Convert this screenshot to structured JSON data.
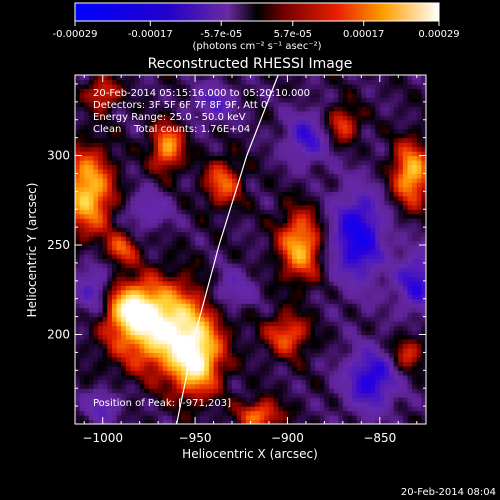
{
  "colorbar": {
    "ticks": [
      "-0.00029",
      "-0.00017",
      "-5.7e-05",
      "5.7e-05",
      "0.00017",
      "0.00029"
    ],
    "tick_values": [
      -0.00029,
      -0.00017,
      -5.7e-05,
      5.7e-05,
      0.00017,
      0.00029
    ],
    "range": [
      -0.00029,
      0.00029
    ],
    "unit_label": "(photons cm⁻² s⁻¹ asec⁻²)"
  },
  "chart_data": {
    "type": "heatmap",
    "title": "Reconstructed RHESSI Image",
    "xlabel": "Heliocentric X (arcsec)",
    "ylabel": "Heliocentric Y (arcsec)",
    "xlim": [
      -1015,
      -825
    ],
    "ylim": [
      150,
      345
    ],
    "xticks": [
      -1000,
      -950,
      -900,
      -850
    ],
    "xtick_labels": [
      "−1000",
      "−950",
      "−900",
      "−850"
    ],
    "yticks": [
      200,
      250,
      300
    ],
    "ytick_labels": [
      "200",
      "250",
      "300"
    ],
    "annotations": [
      "20-Feb-2014 05:15:16.000 to 05:20:10.000",
      "Detectors: 3F 5F 6F 7F 8F 9F, Att 0",
      "Energy Range: 25.0 - 50.0 keV",
      "Clean    Total counts: 1.76E+04"
    ],
    "peak_label": "Position of Peak: [-971,203]",
    "peak": [
      -971,
      203
    ],
    "limb_curve": [
      [
        -960,
        150
      ],
      [
        -950,
        200
      ],
      [
        -937,
        250
      ],
      [
        -922,
        300
      ],
      [
        -905,
        345
      ]
    ],
    "blobs": [
      {
        "x": -968,
        "y": 205,
        "sx": 18,
        "sy": 16,
        "a": 1.0
      },
      {
        "x": -950,
        "y": 185,
        "sx": 9,
        "sy": 13,
        "a": 0.85
      },
      {
        "x": -985,
        "y": 215,
        "sx": 9,
        "sy": 9,
        "a": 0.6
      },
      {
        "x": -1008,
        "y": 280,
        "sx": 9,
        "sy": 16,
        "a": 0.8
      },
      {
        "x": -965,
        "y": 305,
        "sx": 6,
        "sy": 9,
        "a": 0.65
      },
      {
        "x": -990,
        "y": 248,
        "sx": 6,
        "sy": 6,
        "a": 0.45
      },
      {
        "x": -935,
        "y": 285,
        "sx": 7,
        "sy": 9,
        "a": 0.5
      },
      {
        "x": -893,
        "y": 250,
        "sx": 8,
        "sy": 13,
        "a": 0.7
      },
      {
        "x": -900,
        "y": 200,
        "sx": 8,
        "sy": 8,
        "a": 0.5
      },
      {
        "x": -915,
        "y": 155,
        "sx": 8,
        "sy": 6,
        "a": 0.55
      },
      {
        "x": -833,
        "y": 290,
        "sx": 7,
        "sy": 12,
        "a": 0.75
      },
      {
        "x": -870,
        "y": 318,
        "sx": 6,
        "sy": 7,
        "a": 0.45
      },
      {
        "x": -835,
        "y": 190,
        "sx": 6,
        "sy": 7,
        "a": 0.4
      },
      {
        "x": -1000,
        "y": 335,
        "sx": 6,
        "sy": 6,
        "a": 0.45
      },
      {
        "x": -862,
        "y": 255,
        "sx": 10,
        "sy": 18,
        "a": -0.75
      },
      {
        "x": -855,
        "y": 175,
        "sx": 10,
        "sy": 12,
        "a": -0.65
      },
      {
        "x": -890,
        "y": 310,
        "sx": 8,
        "sy": 10,
        "a": -0.5
      },
      {
        "x": -830,
        "y": 230,
        "sx": 8,
        "sy": 12,
        "a": -0.55
      },
      {
        "x": -1005,
        "y": 225,
        "sx": 7,
        "sy": 12,
        "a": -0.4
      },
      {
        "x": -930,
        "y": 225,
        "sx": 8,
        "sy": 8,
        "a": -0.35
      },
      {
        "x": -975,
        "y": 270,
        "sx": 8,
        "sy": 7,
        "a": -0.35
      },
      {
        "x": -940,
        "y": 330,
        "sx": 8,
        "sy": 7,
        "a": -0.4
      },
      {
        "x": -1000,
        "y": 160,
        "sx": 7,
        "sy": 7,
        "a": -0.35
      }
    ]
  },
  "timestamp": "20-Feb-2014 08:04"
}
